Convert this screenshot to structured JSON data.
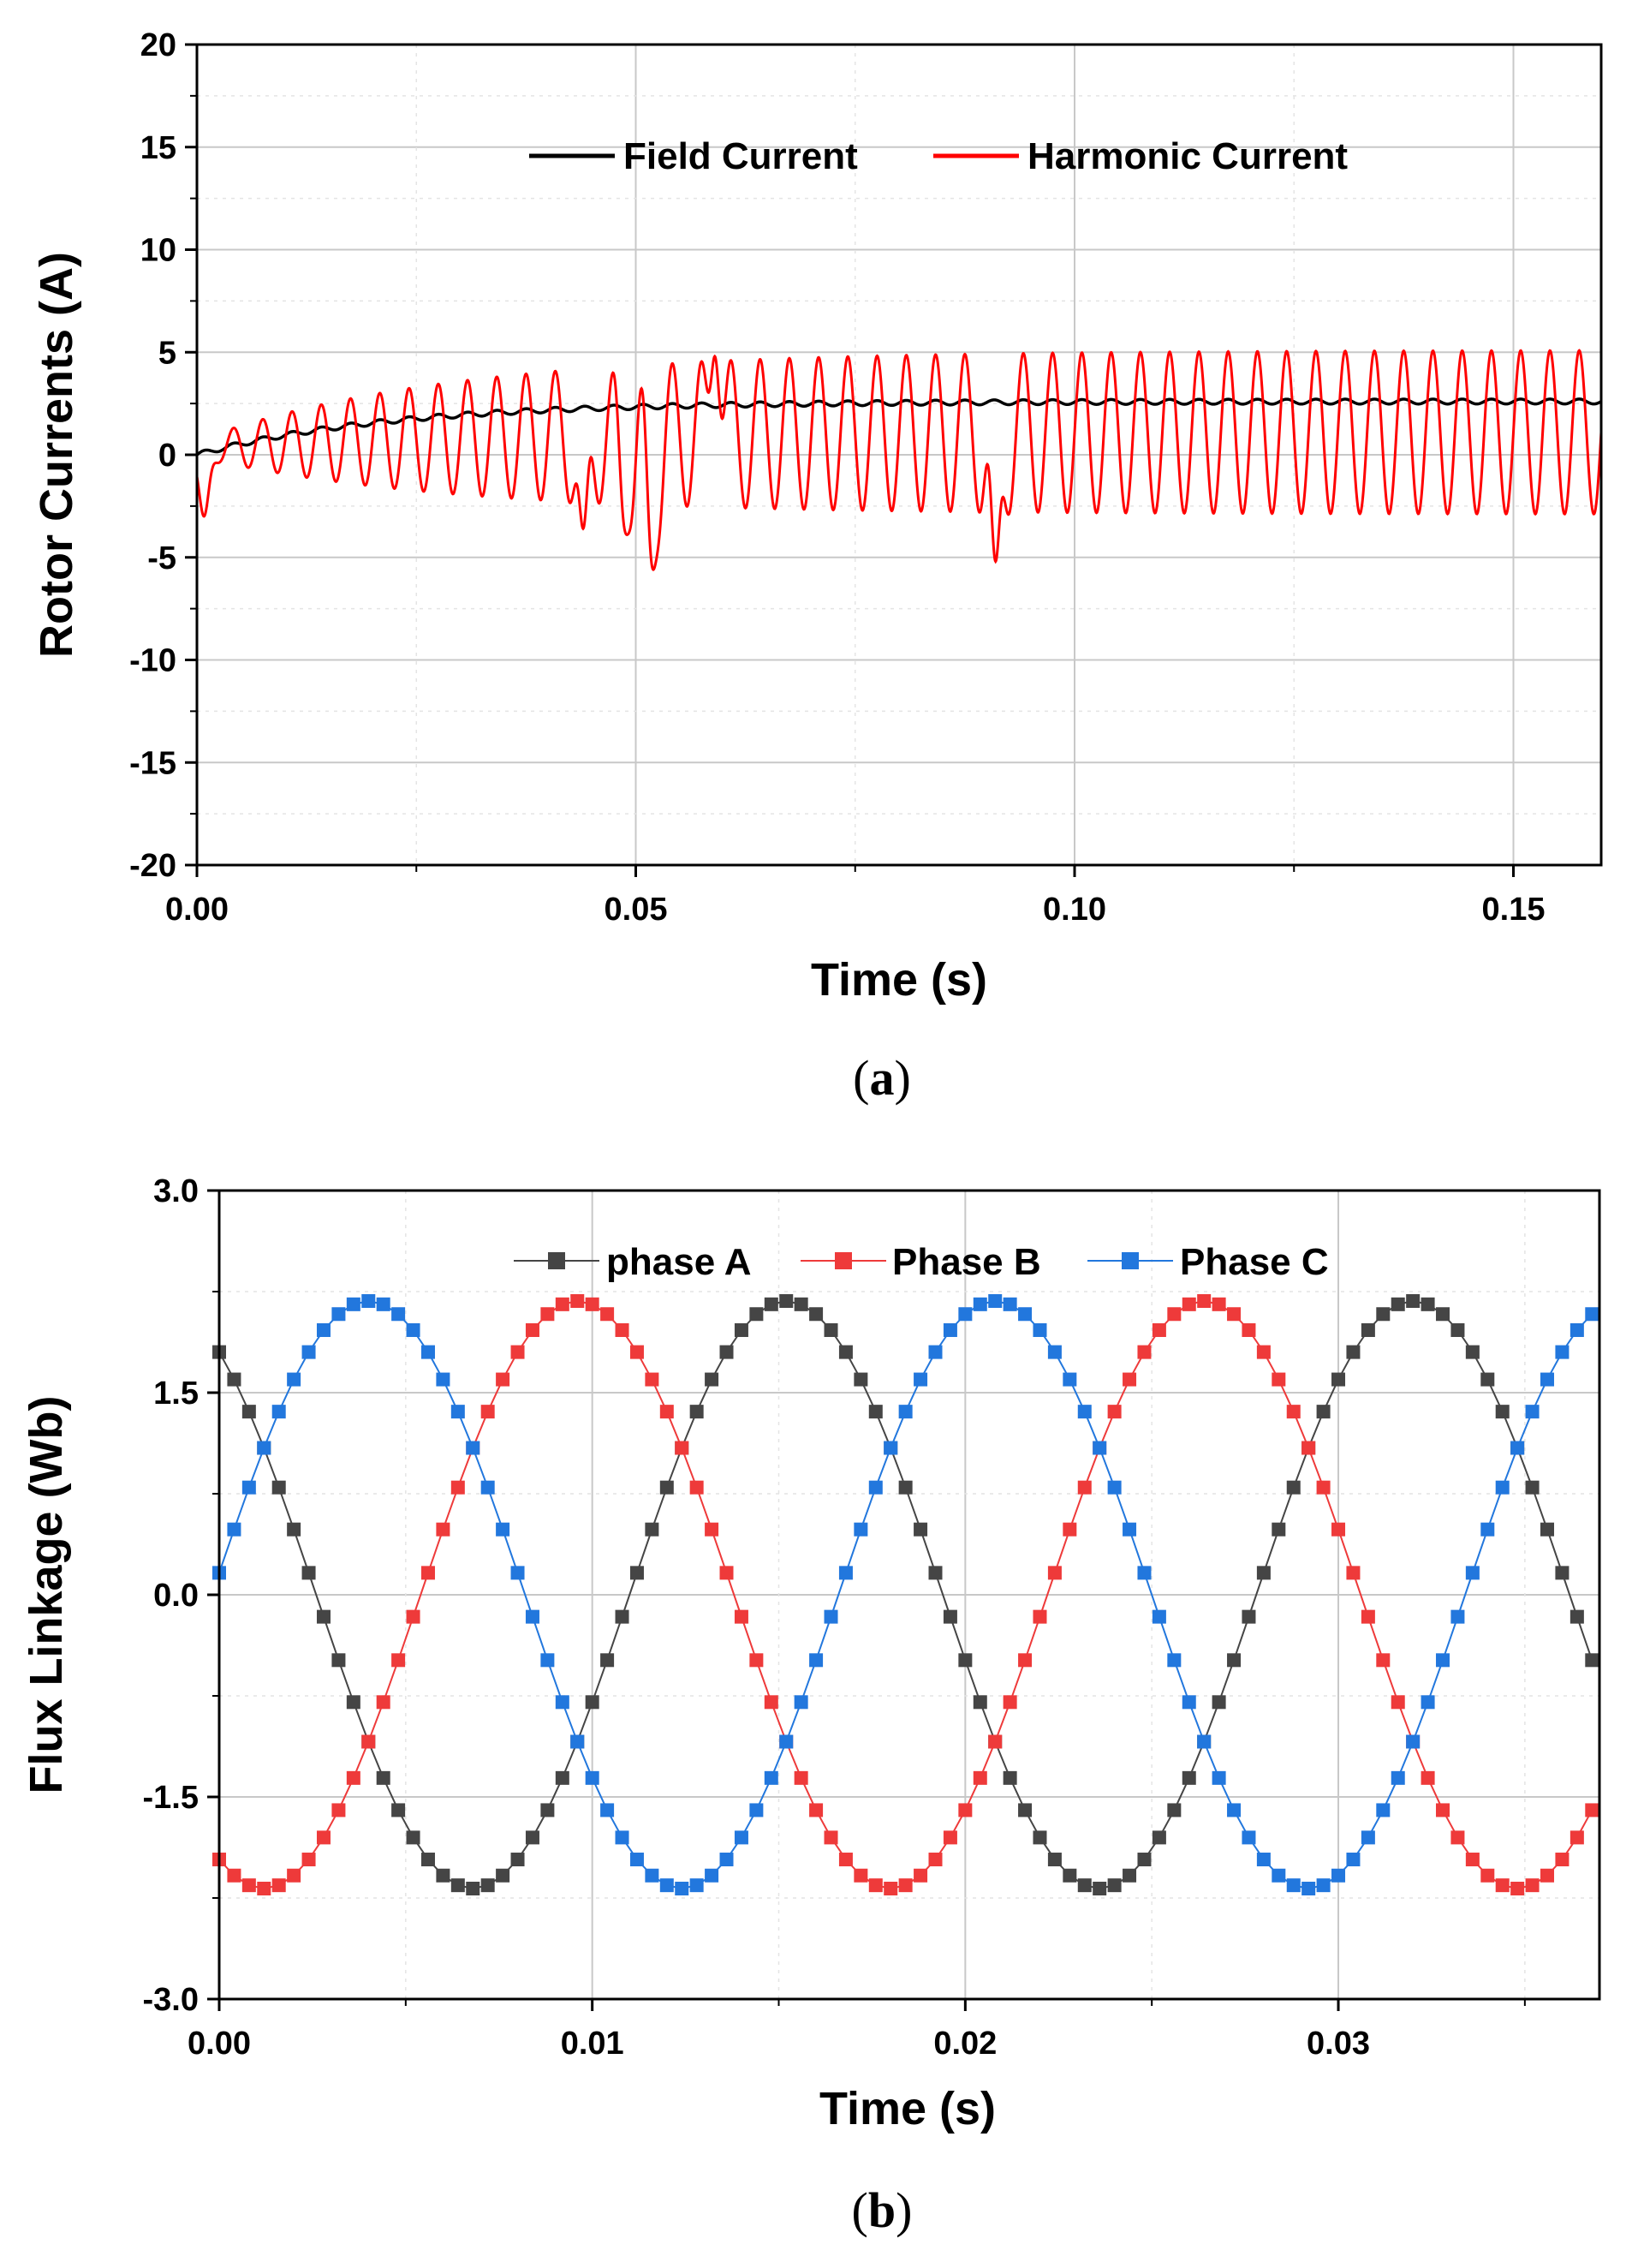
{
  "chart_data": [
    {
      "type": "line",
      "caption_letter": "a",
      "xlabel": "Time (s)",
      "ylabel": "Rotor Currents (A)",
      "xlim": [
        0,
        0.16
      ],
      "ylim": [
        -20,
        20
      ],
      "x_ticks": [
        0,
        0.05,
        0.1,
        0.15
      ],
      "x_tick_labels": [
        "0.00",
        "0.05",
        "0.10",
        "0.15"
      ],
      "y_ticks": [
        -20,
        -15,
        -10,
        -5,
        0,
        5,
        10,
        15,
        20
      ],
      "y_tick_labels": [
        "-20",
        "-15",
        "-10",
        "-5",
        "0",
        "5",
        "10",
        "15",
        "20"
      ],
      "grid": true,
      "legend_position": "top-right",
      "series": [
        {
          "name": "Field Current",
          "color": "#000000",
          "description": "smooth rise from 0 A to about 2.6 A with small ripple",
          "start_value": 0.0,
          "final_value": 2.6
        },
        {
          "name": "Harmonic Current",
          "color": "#ff0000",
          "description": "oscillating current, envelope grows to about +5/-3 A",
          "oscillation_frequency_hz": 300,
          "final_peak": 5.2,
          "final_trough": -3.0,
          "spikes": [
            {
              "t": 0.0008,
              "value": -3.0
            },
            {
              "t": 0.044,
              "value": -3.6
            },
            {
              "t": 0.049,
              "value": -3.9
            },
            {
              "t": 0.052,
              "value": -5.6
            },
            {
              "t": 0.059,
              "value": 4.8
            },
            {
              "t": 0.091,
              "value": -5.2
            }
          ]
        }
      ]
    },
    {
      "type": "scatter-line",
      "caption_letter": "b",
      "xlabel": "Time (s)",
      "ylabel": "Flux Linkage (Wb)",
      "xlim": [
        0,
        0.037
      ],
      "ylim": [
        -3.0,
        3.0
      ],
      "x_ticks": [
        0,
        0.01,
        0.02,
        0.03
      ],
      "x_tick_labels": [
        "0.00",
        "0.01",
        "0.02",
        "0.03"
      ],
      "y_ticks": [
        -3.0,
        -1.5,
        0.0,
        1.5,
        3.0
      ],
      "y_tick_labels": [
        "-3.0",
        "-1.5",
        "0.0",
        "1.5",
        "3.0"
      ],
      "grid": true,
      "legend_position": "top-center",
      "amplitude": 2.18,
      "period_s": 0.0168,
      "sample_step_s": 0.0004,
      "series": [
        {
          "name": "phase A",
          "color": "#454545",
          "peak_time_s": 0.0152
        },
        {
          "name": "Phase B",
          "color": "#ee3a3a",
          "peak_time_s": 0.0096
        },
        {
          "name": "Phase C",
          "color": "#2277dd",
          "peak_time_s": 0.004
        }
      ]
    }
  ]
}
